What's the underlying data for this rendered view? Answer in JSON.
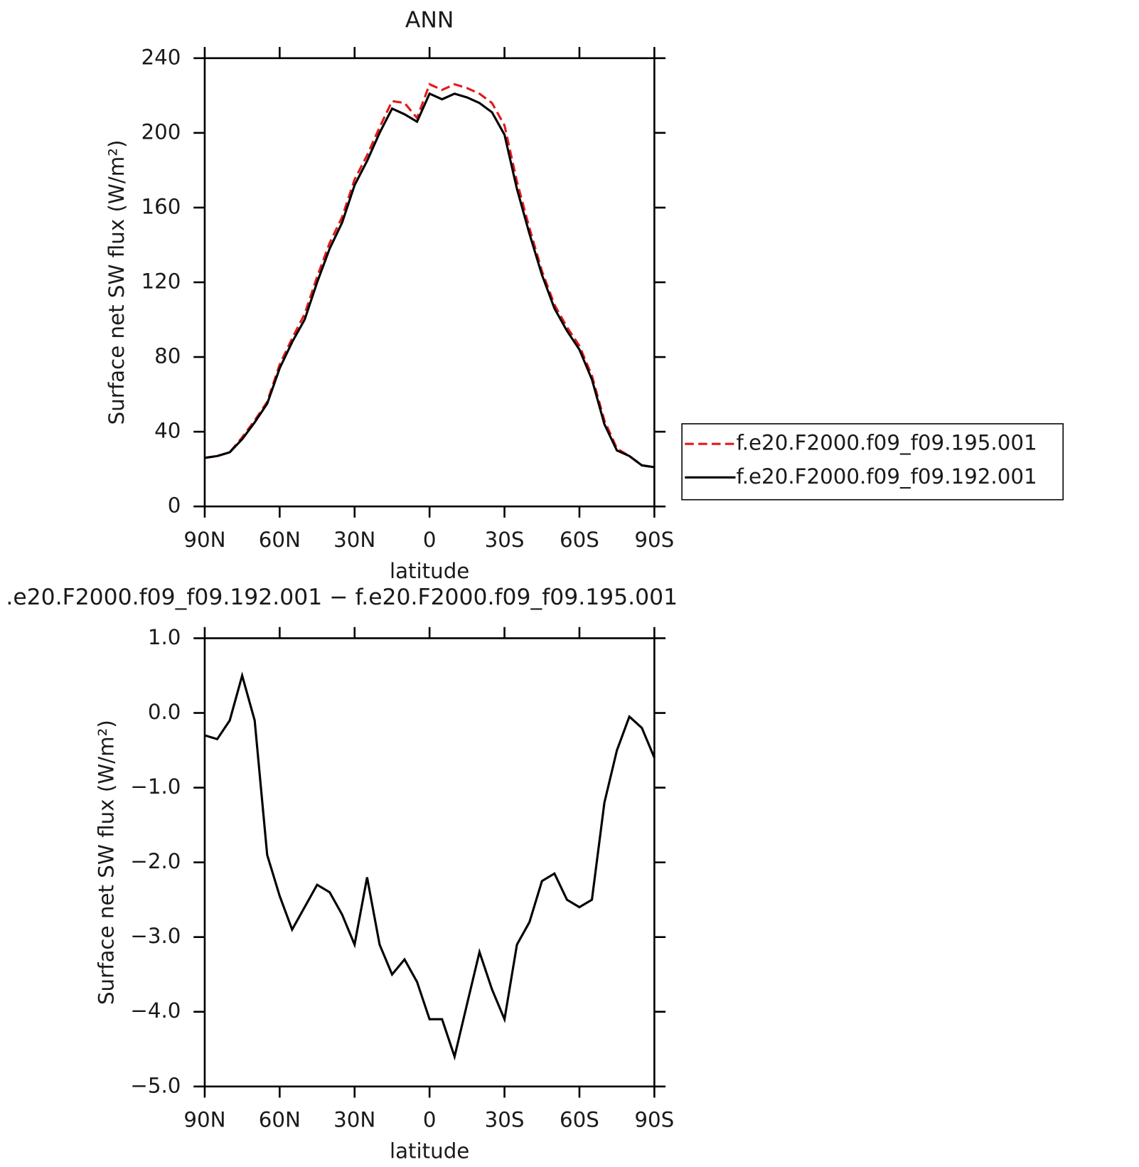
{
  "chart_data": [
    {
      "type": "line",
      "title": "ANN",
      "xlabel": "latitude",
      "ylabel": "Surface net SW flux (W/m²)",
      "x": [
        90,
        85,
        80,
        75,
        70,
        65,
        60,
        55,
        50,
        45,
        40,
        35,
        30,
        25,
        20,
        15,
        10,
        5,
        0,
        -5,
        -10,
        -15,
        -20,
        -25,
        -30,
        -35,
        -40,
        -45,
        -50,
        -55,
        -60,
        -65,
        -70,
        -75,
        -80,
        -85,
        -90
      ],
      "series": [
        {
          "name": "f.e20.F2000.f09_f09.195.001",
          "color": "#e41a1c",
          "line_style": "dashed",
          "values": [
            26,
            27,
            29,
            37,
            46,
            56,
            76,
            90,
            103,
            123,
            141,
            155,
            175,
            188,
            203,
            217,
            216,
            208,
            226,
            223,
            226,
            224,
            221,
            216,
            204,
            174,
            149,
            126,
            108,
            96,
            86,
            70,
            46,
            31,
            27,
            22,
            21
          ]
        },
        {
          "name": "f.e20.F2000.f09_f09.192.001",
          "color": "#000000",
          "line_style": "solid",
          "values": [
            26,
            27,
            29,
            36,
            45,
            55,
            74,
            88,
            100,
            120,
            138,
            152,
            172,
            185,
            200,
            213,
            210,
            206,
            221,
            218,
            221,
            219,
            216,
            211,
            199,
            170,
            146,
            124,
            106,
            94,
            84,
            68,
            44,
            30,
            27,
            22,
            21
          ]
        }
      ],
      "xlim": [
        90,
        -90
      ],
      "xticks": [
        {
          "value": 90,
          "label": "90N"
        },
        {
          "value": 60,
          "label": "60N"
        },
        {
          "value": 30,
          "label": "30N"
        },
        0,
        {
          "value": -30,
          "label": "30S"
        },
        {
          "value": -60,
          "label": "60S"
        },
        {
          "value": -90,
          "label": "90S"
        }
      ],
      "ylim": [
        0,
        240
      ],
      "yticks": [
        0,
        40,
        80,
        120,
        160,
        200,
        240
      ],
      "legend": "right"
    },
    {
      "type": "line",
      "title": ".e20.F2000.f09_f09.192.001 − f.e20.F2000.f09_f09.195.001",
      "xlabel": "latitude",
      "ylabel": "Surface net SW flux (W/m²)",
      "x": [
        90,
        85,
        80,
        75,
        70,
        65,
        60,
        55,
        50,
        45,
        40,
        35,
        30,
        25,
        20,
        15,
        10,
        5,
        0,
        -5,
        -10,
        -15,
        -20,
        -25,
        -30,
        -35,
        -40,
        -45,
        -50,
        -55,
        -60,
        -65,
        -70,
        -75,
        -80,
        -85,
        -90
      ],
      "series": [
        {
          "color": "#000000",
          "line_style": "solid",
          "values": [
            -0.3,
            -0.35,
            -0.1,
            0.5,
            -0.1,
            -1.9,
            -2.45,
            -2.9,
            -2.6,
            -2.3,
            -2.4,
            -2.7,
            -3.1,
            -2.2,
            -3.1,
            -3.5,
            -3.3,
            -3.6,
            -4.1,
            -4.1,
            -4.6,
            -3.9,
            -3.2,
            -3.7,
            -4.1,
            -3.1,
            -2.8,
            -2.25,
            -2.15,
            -2.5,
            -2.6,
            -2.5,
            -1.2,
            -0.5,
            -0.05,
            -0.2,
            -0.6
          ]
        }
      ],
      "xlim": [
        90,
        -90
      ],
      "xticks": [
        {
          "value": 90,
          "label": "90N"
        },
        {
          "value": 60,
          "label": "60N"
        },
        {
          "value": 30,
          "label": "30N"
        },
        0,
        {
          "value": -30,
          "label": "30S"
        },
        {
          "value": -60,
          "label": "60S"
        },
        {
          "value": -90,
          "label": "90S"
        }
      ],
      "ylim": [
        -5,
        1
      ],
      "yticks": [
        {
          "value": -5,
          "label": "−5.0"
        },
        {
          "value": -4,
          "label": "−4.0"
        },
        {
          "value": -3,
          "label": "−3.0"
        },
        {
          "value": -2,
          "label": "−2.0"
        },
        {
          "value": -1,
          "label": "−1.0"
        },
        {
          "value": 0,
          "label": "0.0"
        },
        {
          "value": 1,
          "label": "1.0"
        }
      ]
    }
  ]
}
